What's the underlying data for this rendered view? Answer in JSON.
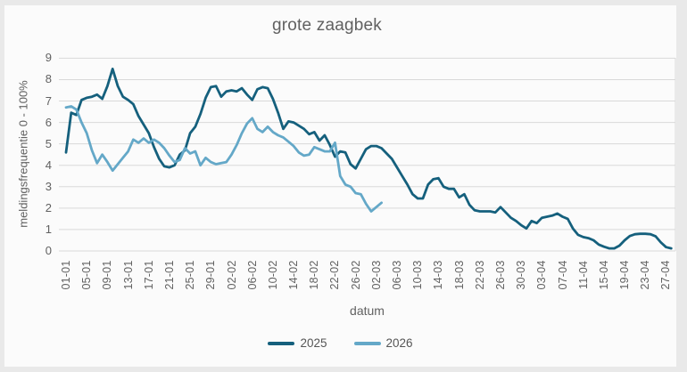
{
  "title": "grote zaagbek",
  "y_axis": {
    "label": "meldingsfrequentie 0 - 100%",
    "ticks": [
      "0",
      "1",
      "2",
      "3",
      "4",
      "5",
      "6",
      "7",
      "8",
      "9"
    ]
  },
  "x_axis": {
    "label": "datum",
    "ticks": [
      "01-01",
      "05-01",
      "09-01",
      "13-01",
      "17-01",
      "21-01",
      "25-01",
      "29-01",
      "02-02",
      "06-02",
      "10-02",
      "14-02",
      "18-02",
      "22-02",
      "26-02",
      "02-03",
      "06-03",
      "10-03",
      "14-03",
      "18-03",
      "22-03",
      "26-03",
      "30-03",
      "03-04",
      "07-04",
      "11-04",
      "15-04",
      "19-04",
      "23-04",
      "27-04"
    ]
  },
  "legend": [
    {
      "label": "2025",
      "color": "#15607d"
    },
    {
      "label": "2026",
      "color": "#64a8c8"
    }
  ],
  "colors": {
    "page_background": "#e9e9e9",
    "panel_background": "#fbfbfb",
    "gridline": "#d9d9d9",
    "text": "#616161",
    "series_2025": "#15607d",
    "series_2026": "#64a8c8"
  },
  "chart_data": {
    "type": "line",
    "title": "grote zaagbek",
    "xlabel": "datum",
    "ylabel": "meldingsfrequentie 0 - 100%",
    "ylim": [
      0,
      9
    ],
    "grid": true,
    "legend_position": "bottom-center",
    "x_unit": "daily values starting 01-01, tick labels every 4 days",
    "x_tick_labels": [
      "01-01",
      "05-01",
      "09-01",
      "13-01",
      "17-01",
      "21-01",
      "25-01",
      "29-01",
      "02-02",
      "06-02",
      "10-02",
      "14-02",
      "18-02",
      "22-02",
      "26-02",
      "02-03",
      "06-03",
      "10-03",
      "14-03",
      "18-03",
      "22-03",
      "26-03",
      "30-03",
      "03-04",
      "07-04",
      "11-04",
      "15-04",
      "19-04",
      "23-04",
      "27-04"
    ],
    "series": [
      {
        "name": "2025",
        "color": "#15607d",
        "start": "01-01",
        "end": "28-04",
        "values": [
          4.6,
          6.45,
          6.35,
          7.05,
          7.15,
          7.2,
          7.3,
          7.1,
          7.7,
          8.5,
          7.7,
          7.2,
          7.05,
          6.85,
          6.3,
          5.9,
          5.5,
          4.85,
          4.3,
          3.95,
          3.9,
          4.0,
          4.5,
          4.7,
          5.5,
          5.8,
          6.4,
          7.15,
          7.65,
          7.7,
          7.2,
          7.45,
          7.5,
          7.45,
          7.6,
          7.3,
          7.05,
          7.55,
          7.65,
          7.6,
          7.1,
          6.45,
          5.7,
          6.05,
          6.0,
          5.85,
          5.7,
          5.45,
          5.55,
          5.15,
          5.4,
          4.95,
          4.4,
          4.65,
          4.6,
          4.05,
          3.85,
          4.3,
          4.75,
          4.9,
          4.9,
          4.8,
          4.55,
          4.3,
          3.9,
          3.5,
          3.1,
          2.65,
          2.45,
          2.45,
          3.1,
          3.35,
          3.4,
          3.0,
          2.9,
          2.9,
          2.5,
          2.65,
          2.15,
          1.9,
          1.85,
          1.85,
          1.85,
          1.8,
          2.05,
          1.8,
          1.55,
          1.4,
          1.2,
          1.05,
          1.4,
          1.3,
          1.55,
          1.6,
          1.65,
          1.75,
          1.6,
          1.5,
          1.05,
          0.75,
          0.65,
          0.6,
          0.5,
          0.3,
          0.2,
          0.12,
          0.12,
          0.25,
          0.5,
          0.7,
          0.78,
          0.8,
          0.8,
          0.78,
          0.68,
          0.4,
          0.18,
          0.12
        ]
      },
      {
        "name": "2026",
        "color": "#64a8c8",
        "start": "01-01",
        "end": "03-03",
        "values": [
          6.7,
          6.75,
          6.6,
          6.0,
          5.5,
          4.7,
          4.1,
          4.5,
          4.15,
          3.75,
          4.05,
          4.35,
          4.65,
          5.2,
          5.05,
          5.25,
          5.05,
          5.2,
          5.05,
          4.8,
          4.45,
          4.15,
          4.25,
          4.8,
          4.55,
          4.65,
          4.0,
          4.35,
          4.15,
          4.05,
          4.1,
          4.15,
          4.5,
          4.95,
          5.5,
          5.95,
          6.2,
          5.7,
          5.55,
          5.8,
          5.55,
          5.4,
          5.3,
          5.1,
          4.9,
          4.6,
          4.45,
          4.5,
          4.85,
          4.75,
          4.65,
          4.65,
          5.05,
          3.5,
          3.1,
          3.0,
          2.7,
          2.65,
          2.2,
          1.85,
          2.05,
          2.25
        ]
      }
    ]
  }
}
